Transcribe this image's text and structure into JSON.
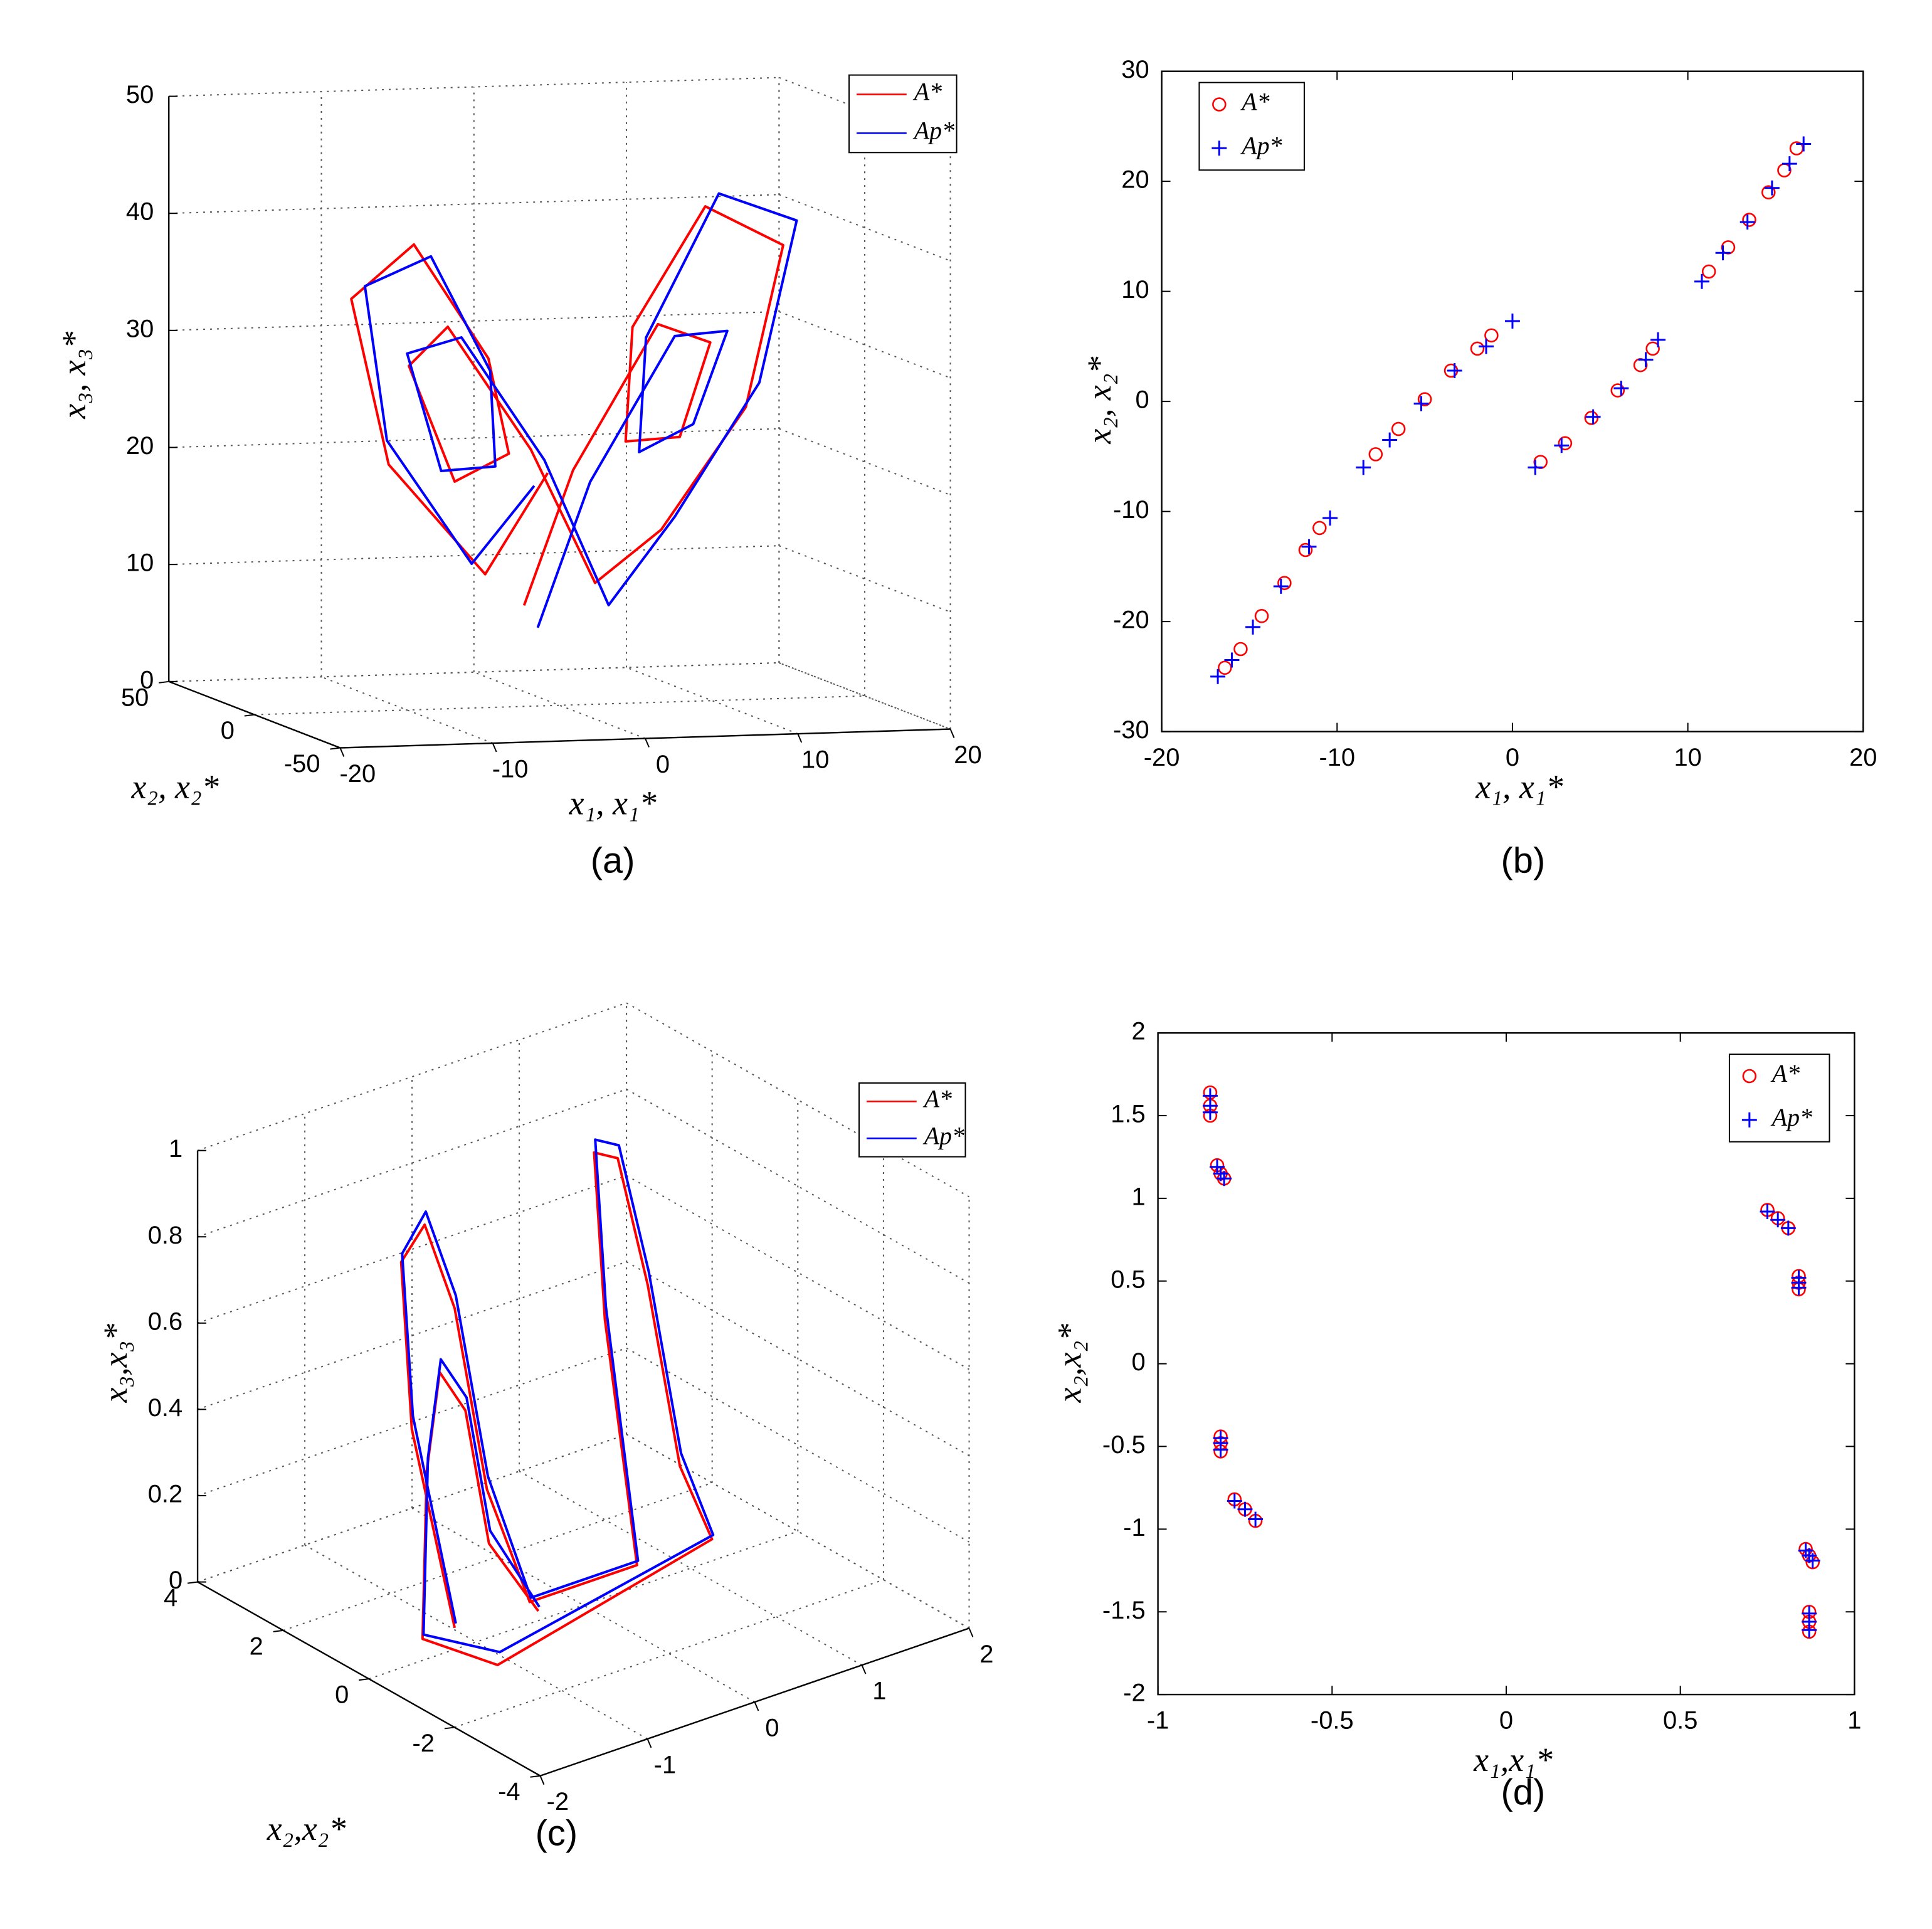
{
  "chart_data": [
    {
      "type": "line3d",
      "panel_label": "(a)",
      "xlabel": "x₁, x₁*",
      "ylabel": "x₂, x₂*",
      "zlabel": "x₃, x₃*",
      "xlim": [
        -20,
        20
      ],
      "ylim": [
        -50,
        50
      ],
      "zlim": [
        0,
        50
      ],
      "xticks": [
        -20,
        -10,
        0,
        10,
        20
      ],
      "yticks": [
        -50,
        0,
        50
      ],
      "zticks": [
        0,
        10,
        20,
        30,
        40,
        50
      ],
      "grid": true,
      "legend": "upper right",
      "series": [
        {
          "name": "A*",
          "color": "#ff0000",
          "x": [
            -1,
            -6,
            -13,
            -15,
            -10,
            -5,
            -4,
            -8,
            -11,
            -8,
            -2,
            3,
            8,
            14,
            16,
            10,
            5,
            5,
            9,
            11,
            7,
            1,
            -3
          ],
          "y": [
            -2,
            -10,
            -16,
            -12,
            -4,
            -3,
            -6,
            -10,
            -10,
            -6,
            -1,
            6,
            12,
            16,
            12,
            4,
            2,
            6,
            10,
            10,
            5,
            1,
            -6
          ],
          "z": [
            20,
            12,
            22,
            36,
            40,
            30,
            22,
            20,
            30,
            33,
            22,
            10,
            14,
            24,
            38,
            42,
            32,
            22,
            22,
            30,
            32,
            20,
            9
          ]
        },
        {
          "name": "Ap*",
          "color": "#0000ff",
          "x": [
            -2,
            -7,
            -13,
            -14,
            -9,
            -5,
            -5,
            -9,
            -11,
            -7,
            -1,
            4,
            9,
            15,
            17,
            11,
            6,
            6,
            10,
            12,
            8,
            2,
            -2
          ],
          "y": [
            -3,
            -11,
            -15,
            -11,
            -5,
            -4,
            -7,
            -11,
            -9,
            -5,
            0,
            7,
            13,
            17,
            13,
            5,
            3,
            7,
            11,
            9,
            4,
            0,
            -5
          ],
          "z": [
            19,
            13,
            24,
            37,
            39,
            29,
            21,
            21,
            31,
            32,
            21,
            8,
            15,
            26,
            40,
            43,
            31,
            21,
            23,
            31,
            31,
            19,
            7
          ]
        }
      ]
    },
    {
      "type": "scatter",
      "panel_label": "(b)",
      "xlabel": "x₁, x₁*",
      "ylabel": "x₂, x₂*",
      "xlim": [
        -20,
        20
      ],
      "ylim": [
        -30,
        30
      ],
      "xticks": [
        -20,
        -10,
        0,
        10,
        20
      ],
      "yticks": [
        -30,
        -20,
        -10,
        0,
        10,
        20,
        30
      ],
      "grid": false,
      "legend": "upper left",
      "series": [
        {
          "name": "A*",
          "color": "#ff0000",
          "marker": "o",
          "x": [
            -16.4,
            -15.5,
            -14.3,
            -13.0,
            -11.8,
            -11.0,
            -7.8,
            -6.5,
            -5.0,
            -3.5,
            -2.0,
            -1.2,
            1.6,
            3.0,
            4.5,
            6.0,
            7.3,
            8.0,
            11.2,
            12.3,
            13.5,
            14.6,
            15.5,
            16.2
          ],
          "y": [
            -24.2,
            -22.5,
            -19.5,
            -16.5,
            -13.5,
            -11.5,
            -4.8,
            -2.5,
            0.2,
            2.8,
            4.8,
            6.0,
            -5.5,
            -3.8,
            -1.5,
            1.0,
            3.3,
            4.8,
            11.8,
            14.0,
            16.5,
            19.0,
            21.0,
            23.0
          ]
        },
        {
          "name": "Ap*",
          "color": "#0000ff",
          "marker": "+",
          "x": [
            -16.8,
            -16.0,
            -14.8,
            -13.2,
            -11.6,
            -10.4,
            -8.5,
            -7.0,
            -5.2,
            -3.3,
            -1.5,
            0.0,
            1.3,
            2.8,
            4.6,
            6.2,
            7.6,
            8.3,
            10.8,
            12.0,
            13.4,
            14.8,
            15.8,
            16.6
          ],
          "y": [
            -25.0,
            -23.5,
            -20.5,
            -16.8,
            -13.2,
            -10.6,
            -6.0,
            -3.5,
            -0.2,
            2.8,
            5.0,
            7.3,
            -6.0,
            -4.0,
            -1.4,
            1.2,
            3.8,
            5.6,
            10.9,
            13.5,
            16.3,
            19.4,
            21.6,
            23.4
          ]
        }
      ]
    },
    {
      "type": "line3d",
      "panel_label": "(c)",
      "ylabel": "x₂,x₂*",
      "zlabel": "x₃,x₃*",
      "xlim": [
        -2,
        2
      ],
      "ylim": [
        -4,
        4
      ],
      "zlim": [
        0,
        1
      ],
      "xticks": [
        -2,
        -1,
        0,
        1,
        2
      ],
      "yticks": [
        -4,
        -2,
        0,
        2,
        4
      ],
      "zticks": [
        0,
        0.2,
        0.4,
        0.6,
        0.8,
        1
      ],
      "grid": true,
      "legend": "upper right",
      "series": [
        {
          "name": "A*",
          "color": "#ff0000",
          "x": [
            -1.2,
            -1.4,
            -1.3,
            -1.0,
            -0.8,
            -0.7,
            -0.5,
            0.5,
            0.4,
            0.5,
            0.8,
            1.0,
            1.1,
            1.2,
            -1.2,
            -1.5,
            -1.3,
            -1.1,
            -0.9,
            -0.8,
            -0.5
          ],
          "y": [
            0,
            0.5,
            1.0,
            1.2,
            1.0,
            0.5,
            0,
            0,
            0.5,
            1.0,
            1.2,
            1.0,
            0.5,
            0,
            -1.0,
            0,
            0.4,
            0.6,
            0.5,
            0.2,
            -0.2
          ],
          "z": [
            0.05,
            0.5,
            0.85,
            0.9,
            0.7,
            0.3,
            0.05,
            0.05,
            0.6,
            0.95,
            0.9,
            0.6,
            0.2,
            0.05,
            0.02,
            0.05,
            0.4,
            0.6,
            0.5,
            0.2,
            0.04
          ]
        },
        {
          "name": "Ap*",
          "color": "#0000ff",
          "x": [
            -1.15,
            -1.35,
            -1.25,
            -0.95,
            -0.75,
            -0.65,
            -0.45,
            0.55,
            0.45,
            0.55,
            0.85,
            1.05,
            1.15,
            1.25,
            -1.1,
            -1.45,
            -1.25,
            -1.05,
            -0.85,
            -0.75,
            -0.45
          ],
          "y": [
            0.1,
            0.6,
            1.1,
            1.3,
            1.1,
            0.6,
            0.1,
            0.1,
            0.6,
            1.1,
            1.3,
            1.1,
            0.6,
            0.1,
            -0.8,
            0.1,
            0.5,
            0.7,
            0.6,
            0.3,
            -0.1
          ],
          "z": [
            0.05,
            0.52,
            0.86,
            0.92,
            0.72,
            0.32,
            0.05,
            0.05,
            0.62,
            0.97,
            0.92,
            0.62,
            0.22,
            0.05,
            0.03,
            0.05,
            0.42,
            0.62,
            0.52,
            0.22,
            0.04
          ]
        }
      ]
    },
    {
      "type": "scatter",
      "panel_label": "(d)",
      "xlabel": "x₁,x₁*",
      "ylabel": "x₂,x₂*",
      "xlim": [
        -1,
        1
      ],
      "ylim": [
        -2,
        2
      ],
      "xticks": [
        -1,
        -0.5,
        0,
        0.5,
        1
      ],
      "yticks": [
        -2,
        -1.5,
        -1,
        -0.5,
        0,
        0.5,
        1,
        1.5,
        2
      ],
      "grid": false,
      "legend": "upper right",
      "series": [
        {
          "name": "A*",
          "color": "#ff0000",
          "marker": "o",
          "x": [
            -0.85,
            -0.85,
            -0.85,
            -0.83,
            -0.82,
            -0.81,
            -0.82,
            -0.82,
            -0.82,
            -0.78,
            -0.75,
            -0.72,
            0.75,
            0.78,
            0.81,
            0.84,
            0.84,
            0.84,
            0.86,
            0.87,
            0.88,
            0.87,
            0.87,
            0.87
          ],
          "y": [
            1.64,
            1.56,
            1.5,
            1.2,
            1.15,
            1.12,
            -0.44,
            -0.48,
            -0.53,
            -0.82,
            -0.88,
            -0.95,
            0.93,
            0.88,
            0.82,
            0.53,
            0.49,
            0.45,
            -1.12,
            -1.16,
            -1.2,
            -1.5,
            -1.56,
            -1.62
          ]
        },
        {
          "name": "Ap*",
          "color": "#0000ff",
          "marker": "+",
          "x": [
            -0.85,
            -0.85,
            -0.85,
            -0.83,
            -0.82,
            -0.81,
            -0.82,
            -0.82,
            -0.82,
            -0.78,
            -0.75,
            -0.72,
            0.75,
            0.78,
            0.81,
            0.84,
            0.84,
            0.84,
            0.86,
            0.87,
            0.88,
            0.87,
            0.87,
            0.87
          ],
          "y": [
            1.62,
            1.56,
            1.52,
            1.19,
            1.15,
            1.12,
            -0.45,
            -0.48,
            -0.52,
            -0.83,
            -0.88,
            -0.94,
            0.92,
            0.87,
            0.82,
            0.52,
            0.49,
            0.46,
            -1.13,
            -1.16,
            -1.19,
            -1.51,
            -1.56,
            -1.61
          ]
        }
      ]
    }
  ]
}
